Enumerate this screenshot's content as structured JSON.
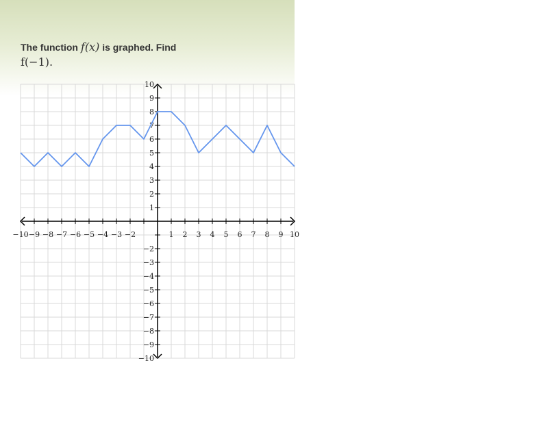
{
  "question": {
    "text_before": "The function",
    "func": "f(x)",
    "text_middle": "is graphed. Find",
    "target": "f(−1)."
  },
  "chart_data": {
    "type": "line",
    "title": "",
    "xlabel": "",
    "ylabel": "",
    "xlim": [
      -10,
      10
    ],
    "ylim": [
      -10,
      10
    ],
    "grid": true,
    "x_ticks": [
      -10,
      -9,
      -8,
      -7,
      -6,
      -5,
      -4,
      -3,
      -2,
      1,
      2,
      3,
      4,
      5,
      6,
      7,
      8,
      9,
      10
    ],
    "x_tick_labels": [
      "−10",
      "−9",
      "−8",
      "−7",
      "−6",
      "−5",
      "−4",
      "−3",
      "−2",
      "1",
      "2",
      "3",
      "4",
      "5",
      "6",
      "7",
      "8",
      "9",
      "10"
    ],
    "y_ticks": [
      -10,
      -9,
      -8,
      -7,
      -6,
      -5,
      -4,
      -3,
      -2,
      1,
      2,
      3,
      4,
      5,
      6,
      7,
      8,
      9,
      10
    ],
    "y_tick_labels": [
      "−10",
      "−9",
      "−8",
      "−7",
      "−6",
      "−5",
      "−4",
      "−3",
      "−2",
      "1",
      "2",
      "3",
      "4",
      "5",
      "6",
      "7",
      "8",
      "9",
      "10"
    ],
    "series": [
      {
        "color": "#6495ed",
        "x": [
          -10,
          -9,
          -8,
          -7,
          -6,
          -5,
          -4,
          -3,
          -2,
          -1,
          0,
          1,
          2,
          3,
          4,
          5,
          6,
          7,
          8,
          9,
          10
        ],
        "y": [
          5,
          4,
          5,
          4,
          5,
          4,
          6,
          7,
          7,
          6,
          8,
          8,
          7,
          5,
          6,
          7,
          6,
          5,
          7,
          5,
          4
        ]
      }
    ]
  }
}
